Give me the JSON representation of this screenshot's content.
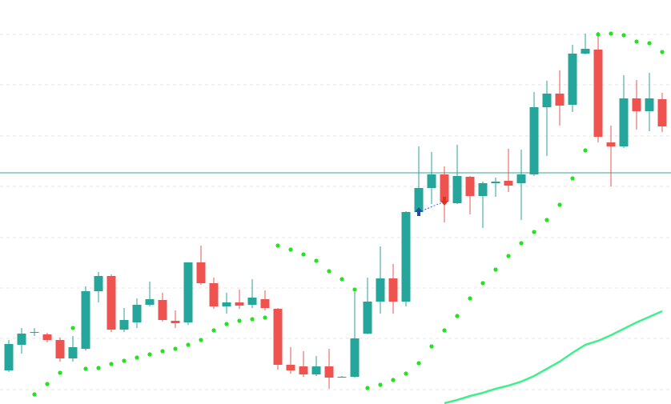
{
  "chart_data": {
    "type": "candlestick",
    "up_color": "#26a69a",
    "down_color": "#ef5350",
    "ylim": [
      0,
      505
    ],
    "yticks": [
      18,
      82,
      145,
      208,
      272,
      335,
      399,
      462
    ],
    "grid": true,
    "open": [
      42,
      74,
      90,
      87,
      80,
      57,
      69,
      141,
      160,
      93,
      102,
      124,
      130,
      104,
      102,
      177,
      151,
      122,
      127,
      124,
      131,
      119,
      49,
      47,
      37,
      47,
      34,
      34,
      88,
      128,
      157,
      128,
      240,
      270,
      287,
      251,
      284,
      260,
      276,
      279,
      276,
      287,
      371,
      388,
      374,
      438,
      443,
      327,
      322,
      382,
      366,
      381
    ],
    "high": [
      80,
      95,
      95,
      89,
      83,
      85,
      147,
      165,
      162,
      120,
      132,
      153,
      139,
      117,
      177,
      198,
      158,
      139,
      143,
      156,
      142,
      120,
      71,
      66,
      60,
      69,
      35,
      140,
      158,
      197,
      175,
      241,
      322,
      315,
      297,
      324,
      285,
      278,
      283,
      319,
      318,
      390,
      404,
      417,
      449,
      463,
      465,
      348,
      411,
      405,
      414,
      389
    ],
    "low": [
      40,
      63,
      85,
      77,
      53,
      53,
      67,
      127,
      90,
      90,
      95,
      122,
      103,
      95,
      99,
      149,
      119,
      113,
      119,
      120,
      117,
      43,
      38,
      34,
      35,
      19,
      33,
      33,
      87,
      113,
      113,
      122,
      235,
      250,
      227,
      250,
      237,
      220,
      259,
      265,
      230,
      285,
      310,
      348,
      365,
      437,
      327,
      272,
      320,
      343,
      341,
      340
    ],
    "close": [
      75,
      88,
      90,
      80,
      57,
      71,
      141,
      160,
      93,
      105,
      124,
      131,
      105,
      101,
      177,
      151,
      122,
      127,
      123,
      133,
      120,
      49,
      42,
      37,
      47,
      33,
      34,
      82,
      128,
      157,
      128,
      240,
      270,
      287,
      253,
      285,
      260,
      276,
      278,
      273,
      287,
      371,
      388,
      373,
      438,
      444,
      334,
      322,
      382,
      366,
      382,
      347
    ],
    "sar": {
      "color": "#1ee61e",
      "values": [
        null,
        null,
        12,
        25,
        39,
        95,
        44,
        45,
        50,
        54,
        58,
        62,
        66,
        69,
        74,
        80,
        92,
        100,
        104,
        106,
        108,
        198,
        193,
        187,
        179,
        166,
        156,
        143,
        20,
        24,
        30,
        38,
        51,
        72,
        92,
        110,
        132,
        151,
        168,
        185,
        201,
        215,
        230,
        249,
        282,
        317,
        462,
        463,
        461,
        453,
        451,
        440
      ]
    },
    "ma": {
      "color": "#3ff08a",
      "values": [
        null,
        null,
        null,
        null,
        null,
        null,
        null,
        null,
        null,
        null,
        null,
        null,
        null,
        null,
        null,
        null,
        null,
        null,
        null,
        null,
        null,
        null,
        null,
        null,
        null,
        null,
        null,
        null,
        null,
        null,
        null,
        null,
        null,
        null,
        1,
        5,
        10,
        14,
        19,
        23,
        28,
        35,
        44,
        53,
        64,
        74,
        79,
        86,
        94,
        102,
        109,
        116
      ]
    },
    "hline": {
      "value": 289,
      "color": "#3aa39a"
    }
  }
}
